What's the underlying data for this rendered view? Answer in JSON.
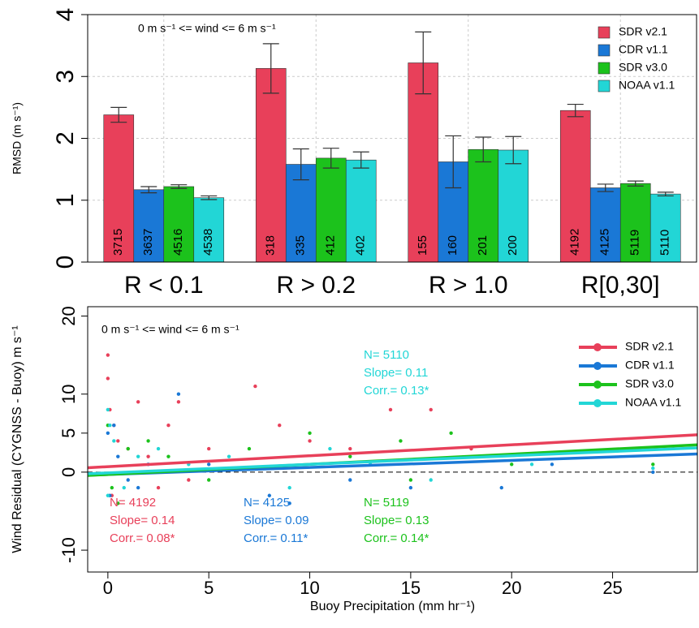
{
  "chart_data": [
    {
      "type": "bar",
      "annotation": "0 m s⁻¹ <= wind <= 6 m s⁻¹",
      "y_label": "RMSD (m s⁻¹)",
      "categories": [
        "R < 0.1",
        "R > 0.2",
        "R > 1.0",
        "R[0,30]"
      ],
      "ylim": [
        0,
        4
      ],
      "yticks": [
        0,
        1,
        2,
        3,
        4
      ],
      "grid": true,
      "legend": "top-right",
      "series": [
        {
          "name": "SDR v2.1",
          "color": "#e8405a",
          "values": [
            2.38,
            3.13,
            3.22,
            2.45
          ],
          "errors": [
            0.12,
            0.4,
            0.5,
            0.1
          ],
          "counts": [
            "3715",
            "318",
            "155",
            "4192"
          ]
        },
        {
          "name": "CDR v1.1",
          "color": "#1a78d6",
          "values": [
            1.17,
            1.58,
            1.62,
            1.2
          ],
          "errors": [
            0.05,
            0.25,
            0.42,
            0.06
          ],
          "counts": [
            "3637",
            "335",
            "160",
            "4125"
          ]
        },
        {
          "name": "SDR v3.0",
          "color": "#1cc21c",
          "values": [
            1.22,
            1.68,
            1.82,
            1.27
          ],
          "errors": [
            0.03,
            0.16,
            0.2,
            0.04
          ],
          "counts": [
            "4516",
            "412",
            "201",
            "5119"
          ]
        },
        {
          "name": "NOAA v1.1",
          "color": "#22d6d6",
          "values": [
            1.04,
            1.65,
            1.81,
            1.1
          ],
          "errors": [
            0.03,
            0.13,
            0.22,
            0.03
          ],
          "counts": [
            "4538",
            "402",
            "200",
            "5110"
          ]
        }
      ]
    },
    {
      "type": "scatter",
      "annotation": "0 m s⁻¹ <= wind <= 6 m s⁻¹",
      "x_label": "Buoy Precipitation (mm hr⁻¹)",
      "y_label": "Wind Residual (CYGNSS - Buoy) m s⁻¹",
      "xlim": [
        -1,
        29.2
      ],
      "ylim": [
        -12.8,
        21.2
      ],
      "xticks": [
        0,
        5,
        10,
        15,
        20,
        25
      ],
      "yticks": [
        -10,
        0,
        5,
        10,
        20
      ],
      "hline": 0,
      "legend": "top-right",
      "series": [
        {
          "name": "SDR v2.1",
          "color": "#e8405a",
          "stats": [
            "N= 4192",
            "Slope= 0.14",
            "Corr.= 0.08*"
          ],
          "x": [
            0,
            0,
            0.1,
            0.3,
            0.5,
            1,
            1.5,
            2,
            3,
            3.5,
            5,
            7.3,
            8.5,
            10,
            12,
            14,
            16,
            18,
            0.2,
            2.5,
            4
          ],
          "y": [
            15,
            12,
            8,
            6,
            4,
            3,
            9,
            2,
            6,
            9,
            3,
            11,
            6,
            4,
            3,
            8,
            8,
            3,
            -3,
            -2,
            -1
          ],
          "fit_x": [
            -1,
            29.2
          ],
          "fit_y": [
            0.56,
            4.79
          ]
        },
        {
          "name": "CDR v1.1",
          "color": "#1a78d6",
          "stats": [
            "N= 4125",
            "Slope= 0.09",
            "Corr.= 0.11*"
          ],
          "x": [
            0,
            0.1,
            0.5,
            1,
            2,
            3.5,
            5,
            8,
            9,
            12,
            15,
            19.5,
            22,
            27,
            0.3,
            1.5
          ],
          "y": [
            5,
            -3,
            2,
            -1,
            1,
            10,
            1,
            -3,
            -4,
            -1,
            -2,
            -2,
            1,
            0,
            6,
            -2
          ],
          "fit_x": [
            -1,
            29.2
          ],
          "fit_y": [
            -0.39,
            2.33
          ]
        },
        {
          "name": "SDR v3.0",
          "color": "#1cc21c",
          "stats": [
            "N= 5119",
            "Slope= 0.13",
            "Corr.= 0.14*"
          ],
          "x": [
            0,
            0.2,
            1,
            2,
            3,
            5,
            7,
            10,
            12,
            15,
            17,
            14.5,
            20,
            27,
            0.5
          ],
          "y": [
            6,
            -2,
            3,
            4,
            2,
            -1,
            3,
            5,
            2,
            -1,
            5,
            4,
            1,
            1,
            -4
          ],
          "fit_x": [
            -1,
            29.2
          ],
          "fit_y": [
            -0.43,
            3.5
          ]
        },
        {
          "name": "NOAA v1.1",
          "color": "#22d6d6",
          "stats": [
            "N= 5110",
            "Slope= 0.11",
            "Corr.= 0.13*"
          ],
          "x": [
            0,
            0,
            0.3,
            0.8,
            1.5,
            2.5,
            4,
            6,
            9,
            11,
            13,
            16,
            21,
            27,
            0.1
          ],
          "y": [
            8,
            -3,
            4,
            -2,
            2,
            3,
            1,
            2,
            -2,
            3,
            1,
            -1,
            1,
            0.5,
            6
          ],
          "fit_x": [
            -1,
            29.2
          ],
          "fit_y": [
            -0.21,
            3.11
          ]
        }
      ]
    }
  ]
}
